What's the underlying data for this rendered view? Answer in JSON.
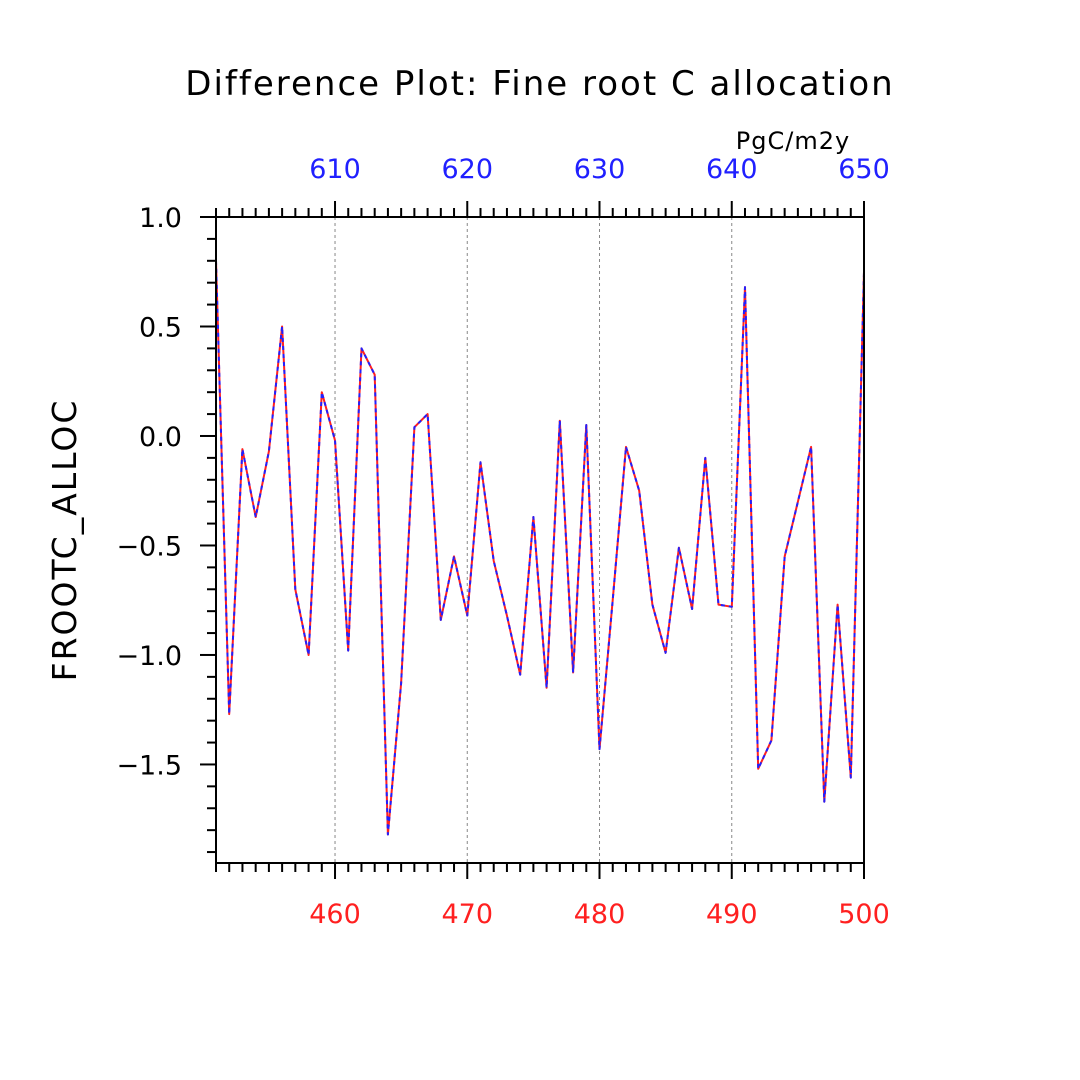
{
  "chart_data": {
    "type": "line",
    "title": "Difference Plot: Fine root C allocation",
    "units_label": "PgC/m2y",
    "ylabel": "FROOTC_ALLOC",
    "ylim": [
      -1.95,
      1.0
    ],
    "y_ticks": [
      {
        "value": 1.0,
        "label": "1.0"
      },
      {
        "value": 0.5,
        "label": "0.5"
      },
      {
        "value": 0.0,
        "label": "0.0"
      },
      {
        "value": -0.5,
        "label": "−0.5"
      },
      {
        "value": -1.0,
        "label": "−1.0"
      },
      {
        "value": -1.5,
        "label": "−1.5"
      }
    ],
    "bottom_axis": {
      "xlim": [
        451,
        500
      ],
      "ticks": [
        {
          "value": 460,
          "label": "460"
        },
        {
          "value": 470,
          "label": "470"
        },
        {
          "value": 480,
          "label": "480"
        },
        {
          "value": 490,
          "label": "490"
        },
        {
          "value": 500,
          "label": "500"
        }
      ],
      "color": "#ff2020"
    },
    "top_axis": {
      "xlim": [
        601,
        650
      ],
      "ticks": [
        {
          "value": 610,
          "label": "610"
        },
        {
          "value": 620,
          "label": "620"
        },
        {
          "value": 630,
          "label": "630"
        },
        {
          "value": 640,
          "label": "640"
        },
        {
          "value": 650,
          "label": "650"
        }
      ],
      "color": "#2020ff"
    },
    "grid": "vertical dashed at labeled ticks",
    "x": [
      451,
      452,
      453,
      454,
      455,
      456,
      457,
      458,
      459,
      460,
      461,
      462,
      463,
      464,
      465,
      466,
      467,
      468,
      469,
      470,
      471,
      472,
      473,
      474,
      475,
      476,
      477,
      478,
      479,
      480,
      481,
      482,
      483,
      484,
      485,
      486,
      487,
      488,
      489,
      490,
      491,
      492,
      493,
      494,
      495,
      496,
      497,
      498,
      499,
      500
    ],
    "series": [
      {
        "color": "#ff2020",
        "style": "solid",
        "values": [
          0.8,
          -1.27,
          -0.06,
          -0.37,
          -0.07,
          0.5,
          -0.7,
          -1.0,
          0.2,
          -0.02,
          -0.98,
          0.4,
          0.28,
          -1.82,
          -1.13,
          0.04,
          0.1,
          -0.84,
          -0.55,
          -0.82,
          -0.12,
          -0.57,
          -0.82,
          -1.09,
          -0.37,
          -1.15,
          0.07,
          -1.08,
          0.05,
          -1.43,
          -0.75,
          -0.05,
          -0.25,
          -0.77,
          -0.99,
          -0.51,
          -0.79,
          -0.1,
          -0.77,
          -0.78,
          0.68,
          -1.52,
          -1.39,
          -0.55,
          -0.3,
          -0.05,
          -1.67,
          -0.77,
          -1.56,
          0.75
        ]
      },
      {
        "color": "#2020ff",
        "style": "dashed",
        "values": [
          0.8,
          -1.27,
          -0.06,
          -0.37,
          -0.07,
          0.5,
          -0.7,
          -1.0,
          0.2,
          -0.02,
          -0.98,
          0.4,
          0.28,
          -1.82,
          -1.13,
          0.04,
          0.1,
          -0.84,
          -0.55,
          -0.82,
          -0.12,
          -0.57,
          -0.82,
          -1.09,
          -0.37,
          -1.15,
          0.07,
          -1.08,
          0.05,
          -1.43,
          -0.75,
          -0.05,
          -0.25,
          -0.77,
          -0.99,
          -0.51,
          -0.79,
          -0.1,
          -0.77,
          -0.78,
          0.68,
          -1.52,
          -1.39,
          -0.55,
          -0.3,
          -0.05,
          -1.67,
          -0.77,
          -1.56,
          0.75
        ]
      }
    ]
  }
}
